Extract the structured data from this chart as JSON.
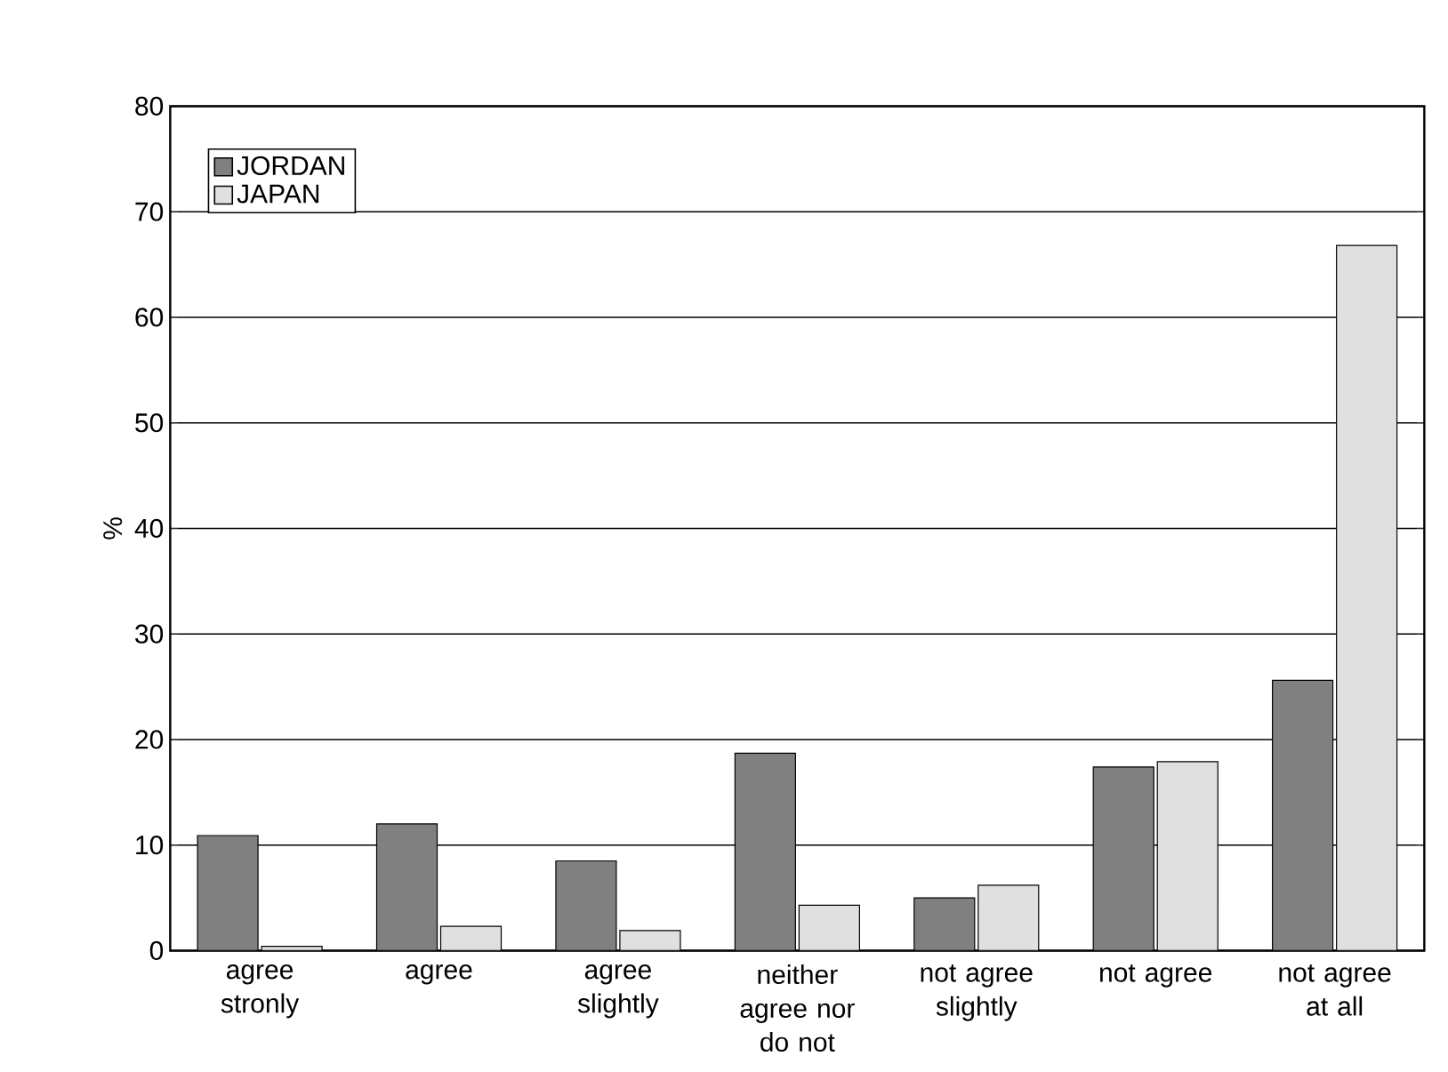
{
  "chart_data": {
    "type": "bar",
    "ylabel": "%",
    "categories": [
      "agree stronly",
      "agree",
      "agree slightly",
      "neither agree nor do not",
      "not agree slightly",
      "not agree",
      "not agree at all"
    ],
    "series": [
      {
        "name": "JORDAN",
        "color": "#808080",
        "values": [
          10.9,
          12.0,
          8.5,
          18.7,
          5.0,
          17.4,
          25.6
        ]
      },
      {
        "name": "JAPAN",
        "color": "#e0e0e0",
        "values": [
          0.4,
          2.3,
          1.9,
          4.3,
          6.2,
          17.9,
          66.8
        ]
      }
    ],
    "ylim": [
      0,
      80
    ],
    "yticks": [
      0,
      10,
      20,
      30,
      40,
      50,
      60,
      70,
      80
    ],
    "grid": "y",
    "legend": "top left"
  }
}
